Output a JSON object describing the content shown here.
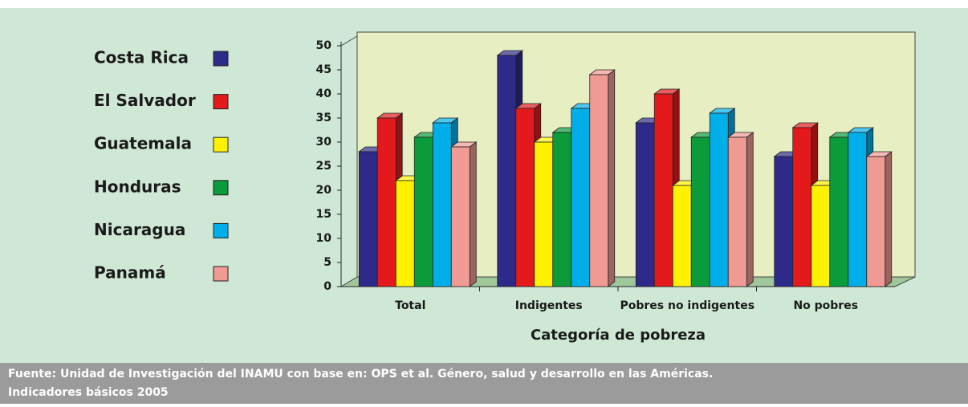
{
  "chart_data": {
    "type": "bar3d",
    "x_label": "Categoría de pobreza",
    "categories": [
      "Total",
      "Indigentes",
      "Pobres no indigentes",
      "No pobres"
    ],
    "series": [
      {
        "name": "Costa Rica",
        "color": "#2e2a8a",
        "values": [
          28,
          48,
          34,
          27
        ]
      },
      {
        "name": "El Salvador",
        "color": "#e3191b",
        "values": [
          35,
          37,
          40,
          33
        ]
      },
      {
        "name": "Guatemala",
        "color": "#fff200",
        "values": [
          22,
          30,
          21,
          21
        ]
      },
      {
        "name": "Honduras",
        "color": "#0a9b3a",
        "values": [
          31,
          32,
          31,
          31
        ]
      },
      {
        "name": "Nicaragua",
        "color": "#00aee9",
        "values": [
          34,
          37,
          36,
          32
        ]
      },
      {
        "name": "Panamá",
        "color": "#f09a94",
        "values": [
          29,
          44,
          31,
          27
        ]
      }
    ],
    "ylim": [
      0,
      50
    ],
    "yticks": [
      0,
      5,
      10,
      15,
      20,
      25,
      30,
      35,
      40,
      45,
      50
    ],
    "legend": "left",
    "source": [
      "Fuente: Unidad de Investigación del INAMU con base en: OPS et al. Género, salud y desarrollo en las Américas.",
      "Indicadores básicos 2005"
    ]
  }
}
